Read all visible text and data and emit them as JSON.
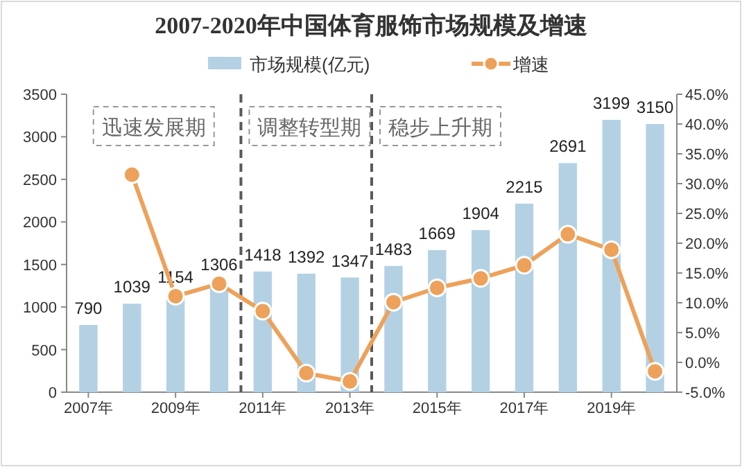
{
  "chart_data": {
    "type": "bar",
    "title": "2007-2020年中国体育服饰市场规模及增速",
    "x": [
      2007,
      2008,
      2009,
      2010,
      2011,
      2012,
      2013,
      2014,
      2015,
      2016,
      2017,
      2018,
      2019,
      2020
    ],
    "xlim": [
      2006.5,
      2020.5
    ],
    "xticks": [
      {
        "value": 2007,
        "label": "2007年"
      },
      {
        "value": 2009,
        "label": "2009年"
      },
      {
        "value": 2011,
        "label": "2011年"
      },
      {
        "value": 2013,
        "label": "2013年"
      },
      {
        "value": 2015,
        "label": "2015年"
      },
      {
        "value": 2017,
        "label": "2017年"
      },
      {
        "value": 2019,
        "label": "2019年"
      }
    ],
    "series": [
      {
        "name": "市场规模(亿元)",
        "color": "#b4d1e4",
        "values": [
          790,
          1039,
          1154,
          1306,
          1418,
          1392,
          1347,
          1483,
          1669,
          1904,
          2215,
          2691,
          3199,
          3150
        ],
        "data_labels": true
      },
      {
        "name": "增速",
        "type": "line",
        "axis": "y2",
        "color": "#eda15a",
        "marker": "circle",
        "values": [
          null,
          31.5,
          11.1,
          13.2,
          8.6,
          -1.8,
          -3.2,
          10.1,
          12.5,
          14.1,
          16.3,
          21.5,
          18.9,
          -1.5
        ]
      }
    ],
    "ylim": [
      0,
      3500
    ],
    "yticks": [
      0,
      500,
      1000,
      1500,
      2000,
      2500,
      3000,
      3500
    ],
    "y2lim": [
      -5,
      45
    ],
    "y2ticks": [
      {
        "value": -5,
        "label": "-5.0%"
      },
      {
        "value": 0,
        "label": "0.0%"
      },
      {
        "value": 5,
        "label": "5.0%"
      },
      {
        "value": 10,
        "label": "10.0%"
      },
      {
        "value": 15,
        "label": "15.0%"
      },
      {
        "value": 20,
        "label": "20.0%"
      },
      {
        "value": 25,
        "label": "25.0%"
      },
      {
        "value": 30,
        "label": "30.0%"
      },
      {
        "value": 35,
        "label": "35.0%"
      },
      {
        "value": 40,
        "label": "40.0%"
      },
      {
        "value": 45,
        "label": "45.0%"
      }
    ],
    "ref_lines": [
      {
        "axis": "x",
        "value": 2010.5,
        "color": "#595959",
        "line_style": "dashed"
      },
      {
        "axis": "x",
        "value": 2013.5,
        "color": "#595959",
        "line_style": "dashed"
      }
    ],
    "annotations": [
      "迅速发展期",
      "调整转型期",
      "稳步上升期"
    ],
    "legend": "top",
    "grid": false
  }
}
